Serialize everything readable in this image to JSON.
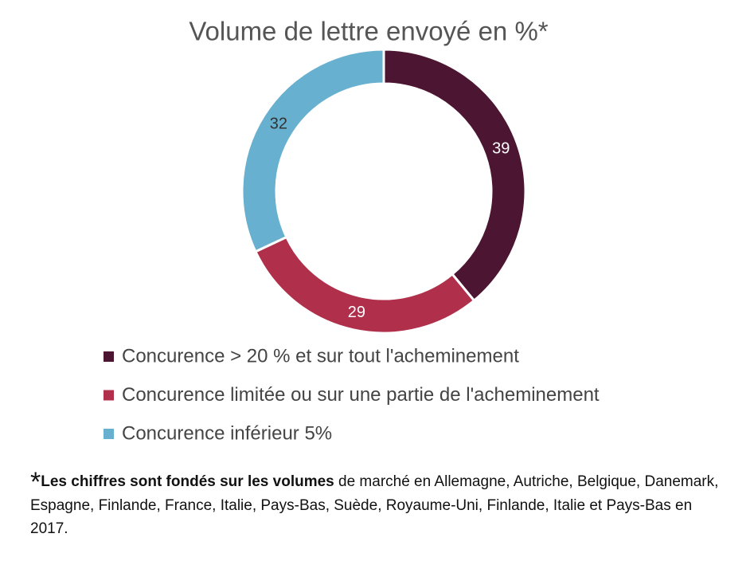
{
  "chart_data": {
    "type": "donut",
    "title": "Volume de lettre envoyé en %*",
    "categories": [
      "Concurence > 20 % et sur tout l'acheminement",
      "Concurence limitée ou sur une partie de l'acheminement",
      "Concurence inférieur 5%"
    ],
    "values": [
      39,
      29,
      32
    ],
    "colors": [
      "#4c1531",
      "#b0304b",
      "#67b0cf"
    ],
    "legend": "bottom"
  },
  "footnote": {
    "marker": "*",
    "bold": "Les chiffres sont fondés sur les volumes",
    "text": " de marché en Allemagne, Autriche, Belgique, Danemark, Espagne, Finlande, France, Italie, Pays-Bas, Suède, Royaume-Uni, Finlande, Italie et Pays-Bas en 2017."
  }
}
